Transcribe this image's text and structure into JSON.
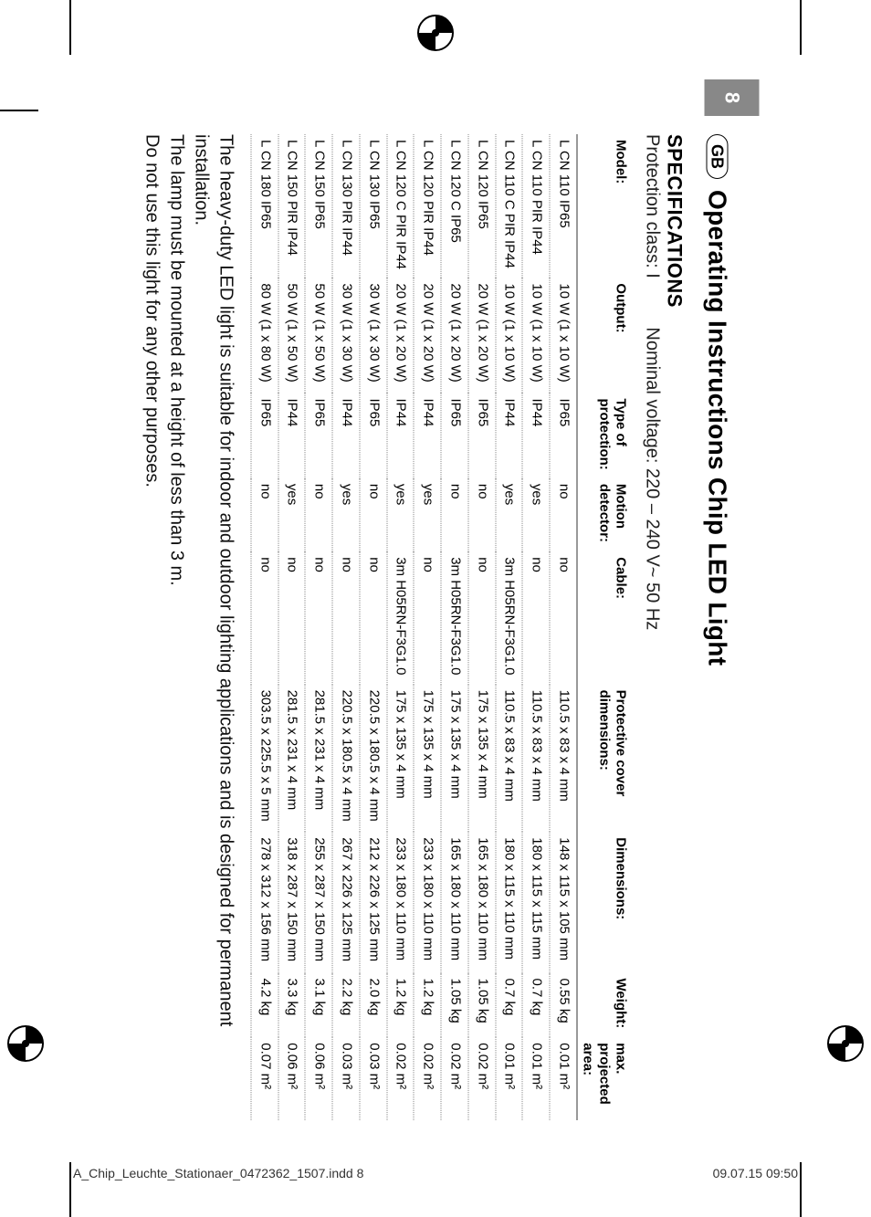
{
  "page_number": "8",
  "region_badge": "GB",
  "title": "Operating Instructions Chip LED Light",
  "specs_heading": "SPECIFICATIONS",
  "specs_sub_left": "Protection class: I",
  "specs_sub_right": "Nominal voltage: 220 – 240 V~ 50 Hz",
  "columns": {
    "model": "Model:",
    "output": "Output:",
    "protection_l1": "Type of",
    "protection_l2": "protection:",
    "motion_l1": "Motion",
    "motion_l2": "detector:",
    "cable": "Cable:",
    "cover_l1": "Protective cover",
    "cover_l2": "dimensions:",
    "dimensions": "Dimensions:",
    "weight": "Weight:",
    "area_l1": "max.",
    "area_l2": "projected area:"
  },
  "rows": [
    {
      "model": "L CN 110 IP65",
      "output": "10 W (1 x 10 W)",
      "prot": "IP65",
      "motion": "no",
      "cable": "no",
      "cover": "110.5 x 83 x 4 mm",
      "dim": "148 x 115 x 105 mm",
      "weight": "0.55 kg",
      "area": "0.01 m²"
    },
    {
      "model": "L CN 110 PIR IP44",
      "output": "10 W (1 x 10 W)",
      "prot": "IP44",
      "motion": "yes",
      "cable": "no",
      "cover": "110.5 x 83 x 4 mm",
      "dim": "180 x 115 x 115 mm",
      "weight": "0.7 kg",
      "area": "0.01 m²"
    },
    {
      "model": "L CN 110 C PIR IP44",
      "output": "10 W (1 x 10 W)",
      "prot": "IP44",
      "motion": "yes",
      "cable": "3m H05RN-F3G1.0",
      "cover": "110.5 x 83 x 4 mm",
      "dim": "180 x 115 x 110 mm",
      "weight": "0.7 kg",
      "area": "0.01 m²"
    },
    {
      "model": "L CN 120 IP65",
      "output": "20 W (1 x 20 W)",
      "prot": "IP65",
      "motion": "no",
      "cable": "no",
      "cover": "175 x 135 x 4 mm",
      "dim": "165 x 180 x 110 mm",
      "weight": "1.05 kg",
      "area": "0.02 m²"
    },
    {
      "model": "L CN 120 C IP65",
      "output": "20 W (1 x 20 W)",
      "prot": "IP65",
      "motion": "no",
      "cable": "3m H05RN-F3G1.0",
      "cover": "175 x 135 x 4 mm",
      "dim": "165 x 180 x 110 mm",
      "weight": "1.05 kg",
      "area": "0.02 m²"
    },
    {
      "model": "L CN 120 PIR IP44",
      "output": "20 W (1 x 20 W)",
      "prot": "IP44",
      "motion": "yes",
      "cable": "no",
      "cover": "175 x 135 x 4 mm",
      "dim": "233 x 180 x 110 mm",
      "weight": "1.2 kg",
      "area": "0.02 m²"
    },
    {
      "model": "L CN 120 C PIR IP44",
      "output": "20 W (1 x 20 W)",
      "prot": "IP44",
      "motion": "yes",
      "cable": "3m H05RN-F3G1.0",
      "cover": "175 x 135 x 4 mm",
      "dim": "233 x 180 x 110 mm",
      "weight": "1.2 kg",
      "area": "0.02 m²"
    },
    {
      "model": "L CN 130 IP65",
      "output": "30 W (1 x 30 W)",
      "prot": "IP65",
      "motion": "no",
      "cable": "no",
      "cover": "220.5 x 180.5 x 4 mm",
      "dim": "212 x 226 x 125 mm",
      "weight": "2.0 kg",
      "area": "0.03 m²"
    },
    {
      "model": "L CN 130 PIR IP44",
      "output": "30 W (1 x 30 W)",
      "prot": "IP44",
      "motion": "yes",
      "cable": "no",
      "cover": "220.5 x 180.5 x 4 mm",
      "dim": "267 x 226 x 125 mm",
      "weight": "2.2 kg",
      "area": "0.03 m²"
    },
    {
      "model": "L CN 150 IP65",
      "output": "50 W (1 x 50 W)",
      "prot": "IP65",
      "motion": "no",
      "cable": "no",
      "cover": "281.5 x 231 x 4 mm",
      "dim": "255 x 287 x 150 mm",
      "weight": "3.1 kg",
      "area": "0.06 m²"
    },
    {
      "model": "L CN 150 PIR IP44",
      "output": "50 W (1 x 50 W)",
      "prot": "IP44",
      "motion": "yes",
      "cable": "no",
      "cover": "281.5 x 231 x 4 mm",
      "dim": "318 x 287 x 150 mm",
      "weight": "3.3 kg",
      "area": "0.06 m²"
    },
    {
      "model": "L CN 180 IP65",
      "output": "80 W (1 x 80 W)",
      "prot": "IP65",
      "motion": "no",
      "cable": "no",
      "cover": "303.5 x 225.5 x 5 mm",
      "dim": "278 x 312 x 156 mm",
      "weight": "4.2 kg",
      "area": "0.07 m²"
    }
  ],
  "footnote_lines": [
    "The heavy-duty LED light is suitable for indoor and outdoor lighting applications and is designed for permanent installation.",
    "The lamp must be mounted at a height of less than 3 m.",
    "Do not use this light for any other purposes."
  ],
  "footer_left": "A_Chip_Leuchte_Stationaer_0472362_1507.indd   8",
  "footer_right": "09.07.15   09:50"
}
